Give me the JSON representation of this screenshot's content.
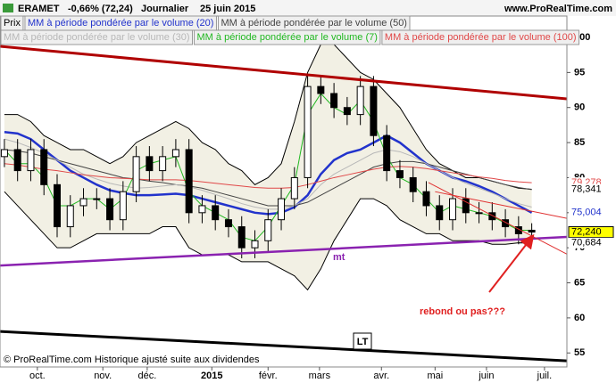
{
  "chart_data": {
    "type": "candlestick",
    "title": "ERAMET",
    "change": "-0,66% (72,24)",
    "period": "Journalier",
    "date": "25 juin 2015",
    "site": "www.ProRealTime.com",
    "price_label": "Prix",
    "source": "© ProRealTime.com Historique ajusté suite aux dividendes",
    "x": [
      0,
      3,
      6,
      9,
      12,
      15,
      18,
      21,
      24,
      27,
      30,
      33,
      36,
      39,
      42,
      45,
      48,
      51,
      54,
      57,
      60,
      63,
      66,
      69,
      72,
      75,
      78,
      81,
      84,
      87,
      90,
      93,
      96,
      99,
      102,
      105,
      108,
      111,
      114,
      117,
      120
    ],
    "open": [
      83,
      84,
      81,
      84,
      79,
      73,
      76,
      77,
      77,
      74,
      78,
      83,
      81,
      83,
      84,
      75,
      76,
      74,
      73,
      70,
      71,
      74,
      77,
      80,
      93,
      92,
      90,
      89,
      93,
      86,
      81,
      80,
      78,
      76,
      74,
      77,
      75,
      75,
      74,
      73,
      72.5
    ],
    "high": [
      85.5,
      85.5,
      85.5,
      85.5,
      80.5,
      77.5,
      78.5,
      78.5,
      78.5,
      79.5,
      84.5,
      84.5,
      84.5,
      85.5,
      85.5,
      77.5,
      77.5,
      75.5,
      74.5,
      72.5,
      75.5,
      78.5,
      81.5,
      94.5,
      94.5,
      93.5,
      91.5,
      94.5,
      94.5,
      87.5,
      82.5,
      81.5,
      79.5,
      77.5,
      78.5,
      78.5,
      76.5,
      76.5,
      75.5,
      74.5,
      73.5
    ],
    "low": [
      81.5,
      79.5,
      79.5,
      77.5,
      71.5,
      71.5,
      74.5,
      75.5,
      72.5,
      72.5,
      76.5,
      79.5,
      79.5,
      81.5,
      73.5,
      73.5,
      72.5,
      71.5,
      68.5,
      68.5,
      69.5,
      72.5,
      75.5,
      78.5,
      90.5,
      88.5,
      87.5,
      87.5,
      84.5,
      79.5,
      78.5,
      76.5,
      74.5,
      72.5,
      72.5,
      73.5,
      73.5,
      72.5,
      71.5,
      70.5,
      71
    ],
    "close": [
      84,
      81,
      84,
      79,
      73,
      76,
      77,
      77,
      74,
      78,
      83,
      81,
      83,
      84,
      75,
      76,
      74,
      73,
      70,
      71,
      74,
      77,
      80,
      93,
      92,
      90,
      89,
      93,
      86,
      81,
      80,
      78,
      76,
      74,
      77,
      75,
      75,
      74,
      73,
      72,
      72.24
    ],
    "bands": {
      "color": "#000000",
      "fill": "#f2f0e4",
      "upper": [
        89,
        89,
        88,
        86,
        85,
        84,
        84,
        83,
        82,
        83,
        85,
        86,
        87,
        88,
        87,
        85,
        84,
        82,
        81,
        79,
        80,
        82,
        88,
        95,
        99,
        99,
        97,
        95,
        94,
        92,
        90,
        87,
        84,
        82,
        81,
        80,
        80,
        79.5,
        79,
        78.5,
        78.341
      ],
      "lower": [
        78,
        76,
        74,
        72,
        70,
        70,
        71,
        72,
        72,
        72,
        72,
        72,
        73,
        73,
        70,
        69,
        69,
        69,
        68,
        68,
        68,
        67,
        66,
        64,
        67,
        71,
        74,
        77,
        77,
        76,
        74,
        73,
        72,
        72,
        71,
        71,
        71,
        70.5,
        70.5,
        70.7,
        70.684
      ]
    },
    "series": [
      {
        "name": "MM à période pondérée par le volume (20)",
        "color": "#2233cc",
        "width": 2.5,
        "values": [
          86.5,
          86.3,
          85.5,
          84,
          82.5,
          81,
          80,
          79,
          78.2,
          77.8,
          77.5,
          77.5,
          77.6,
          77.7,
          77.5,
          77,
          76.5,
          76,
          75.5,
          75,
          74.8,
          75,
          75.8,
          77.5,
          80.5,
          82.5,
          83.5,
          84,
          85,
          86,
          85,
          83.5,
          82,
          81,
          80,
          79.5,
          78.8,
          78,
          77,
          76,
          75.004
        ]
      },
      {
        "name": "MM à période pondérée par le volume (50)",
        "color": "#444444",
        "width": 1,
        "values": [
          84,
          83.8,
          83.5,
          83,
          82.5,
          82,
          81.5,
          81,
          80.5,
          80,
          79.8,
          79.5,
          79.3,
          79,
          78.8,
          78.5,
          78,
          77.5,
          77,
          76.5,
          76,
          76,
          76,
          76.5,
          77.5,
          78.5,
          79.5,
          80.5,
          81.5,
          82,
          82.3,
          82.3,
          82,
          81.5,
          81,
          80.5,
          80,
          79.5,
          79,
          78.6,
          78.3
        ]
      },
      {
        "name": "MM à période pondérée par le volume (30)",
        "color": "#b8b8b8",
        "width": 1,
        "values": [
          85.5,
          85,
          84.3,
          83.5,
          82.5,
          81.5,
          80.5,
          79.8,
          79.2,
          78.8,
          78.5,
          78.6,
          78.8,
          79,
          78.7,
          78.2,
          77.6,
          77,
          76.3,
          75.8,
          75.5,
          75.5,
          76,
          77,
          79,
          80.5,
          81.5,
          82.5,
          83.5,
          84,
          83.7,
          83,
          82,
          81,
          80,
          79.2,
          78.5,
          77.8,
          77,
          76.3,
          75.8
        ]
      },
      {
        "name": "MM à période pondérée par le volume (7)",
        "color": "#22b822",
        "width": 1,
        "values": [
          84,
          82,
          82,
          80,
          76,
          76,
          77,
          77,
          75.5,
          77,
          81,
          82,
          82.5,
          83,
          78,
          76,
          75,
          74,
          71.5,
          71,
          73,
          76,
          79,
          89,
          92,
          90,
          89,
          91,
          88,
          83,
          80,
          79,
          77,
          75,
          76,
          75.5,
          75,
          74.5,
          73.5,
          72.5,
          72.5
        ]
      },
      {
        "name": "MM à période pondérée par le volume (100)",
        "color": "#e04848",
        "width": 1,
        "values": [
          82,
          81.8,
          81.5,
          81.2,
          81,
          80.7,
          80.4,
          80.2,
          80,
          79.9,
          79.8,
          79.7,
          79.7,
          79.7,
          79.6,
          79.4,
          79.2,
          79,
          78.8,
          78.6,
          78.5,
          78.5,
          78.6,
          79,
          79.5,
          80,
          80.4,
          80.8,
          81.2,
          81.5,
          81.6,
          81.5,
          81.3,
          81,
          80.7,
          80.4,
          80.1,
          79.9,
          79.6,
          79.4,
          79.278
        ]
      }
    ],
    "trendlines": [
      {
        "x": [
          -1,
          128
        ],
        "y": [
          98.73,
          91.23
        ],
        "color": "#b00000",
        "width": 3
      },
      {
        "x": [
          -1,
          128
        ],
        "y": [
          67.47,
          71.54
        ],
        "color": "#8a22b0",
        "width": 2.5
      },
      {
        "x": [
          -1,
          128
        ],
        "y": [
          58.07,
          53.88
        ],
        "color": "#000000",
        "width": 3
      },
      {
        "x": [
          96.5,
          128
        ],
        "y": [
          79.3,
          69.1
        ],
        "color": "#e03030",
        "width": 1
      },
      {
        "x": [
          98,
          128
        ],
        "y": [
          78.0,
          74.2
        ],
        "color": "#e03030",
        "width": 1
      }
    ],
    "price_tags": [
      {
        "value": 79.278,
        "label": "79,278",
        "color": "#e04848"
      },
      {
        "value": 78.341,
        "label": "78,341",
        "color": "#000000"
      },
      {
        "value": 75.004,
        "label": "75,004",
        "color": "#2233cc"
      },
      {
        "value": 72.24,
        "label": "72,240",
        "color": "#000000",
        "highlight": true
      },
      {
        "value": 70.684,
        "label": "70,684",
        "color": "#000000"
      }
    ],
    "annotations": {
      "mt": "mt",
      "question": "rebond ou pas???",
      "lt": "LT"
    },
    "xlim": [
      -1,
      128
    ],
    "ylim": [
      53,
      103.05
    ],
    "yticks": [
      55,
      60,
      65,
      70,
      75,
      80,
      85,
      90,
      95,
      100
    ],
    "xticks": [
      {
        "value": 7.5,
        "label": "oct."
      },
      {
        "value": 22.4,
        "label": "nov."
      },
      {
        "value": 32.5,
        "label": "déc."
      },
      {
        "value": 47.2,
        "label": "2015"
      },
      {
        "value": 60,
        "label": "févr."
      },
      {
        "value": 71.7,
        "label": "mars"
      },
      {
        "value": 85.8,
        "label": "avr."
      },
      {
        "value": 98,
        "label": "mai"
      },
      {
        "value": 109.7,
        "label": "juin"
      },
      {
        "value": 122.9,
        "label": "juil."
      }
    ]
  }
}
